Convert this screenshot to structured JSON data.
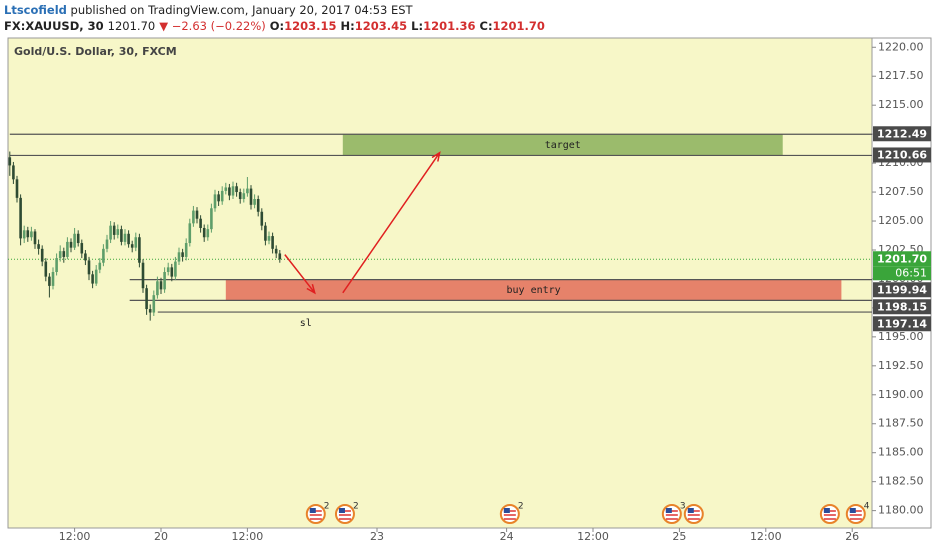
{
  "header": {
    "author": "Ltscofield",
    "published": "published on TradingView.com, January 20, 2017 04:53 EST",
    "symbol": "FX:XAUUSD, 30",
    "last": "1201.70",
    "change": "▼ −2.63 (−0.22%)",
    "ohlc": [
      {
        "key": "O:",
        "value": "1203.15"
      },
      {
        "key": "H:",
        "value": "1203.45"
      },
      {
        "key": "L:",
        "value": "1201.36"
      },
      {
        "key": "C:",
        "value": "1201.70"
      }
    ]
  },
  "chart_data": {
    "type": "candlestick",
    "title": "Gold/U.S. Dollar, 30, FXCM",
    "up_color": "#5e9e6a",
    "down_color": "#2e4b33",
    "background": "#f7f7c8",
    "grid": false,
    "xlim": [
      -0.5,
      239.5
    ],
    "ylim": [
      1178.5,
      1220.8
    ],
    "xticks": [
      {
        "value": 18,
        "label": "12:00"
      },
      {
        "value": 42,
        "label": "20"
      },
      {
        "value": 66,
        "label": "12:00"
      },
      {
        "value": 102,
        "label": "23"
      },
      {
        "value": 138,
        "label": "24"
      },
      {
        "value": 162,
        "label": "12:00"
      },
      {
        "value": 186,
        "label": "25"
      },
      {
        "value": 210,
        "label": "12:00"
      },
      {
        "value": 234,
        "label": "26"
      }
    ],
    "yticks": [
      {
        "value": 1180,
        "label": "1180.00"
      },
      {
        "value": 1182.5,
        "label": "1182.50"
      },
      {
        "value": 1185,
        "label": "1185.00"
      },
      {
        "value": 1187.5,
        "label": "1187.50"
      },
      {
        "value": 1190,
        "label": "1190.00"
      },
      {
        "value": 1192.5,
        "label": "1192.50"
      },
      {
        "value": 1195,
        "label": "1195.00"
      },
      {
        "value": 1197.5,
        "label": "1197.50"
      },
      {
        "value": 1200,
        "label": "1200.00"
      },
      {
        "value": 1202.5,
        "label": "1202.50"
      },
      {
        "value": 1205,
        "label": "1205.00"
      },
      {
        "value": 1207.5,
        "label": "1207.50"
      },
      {
        "value": 1210,
        "label": "1210.00"
      },
      {
        "value": 1212.5,
        "label": "1212.50"
      },
      {
        "value": 1215,
        "label": "1215.00"
      },
      {
        "value": 1217.5,
        "label": "1217.50"
      },
      {
        "value": 1220,
        "label": "1220.00"
      }
    ],
    "candles": [
      [
        1210.5,
        1211.0,
        1208.9,
        1209.8
      ],
      [
        1209.8,
        1210.1,
        1208.2,
        1208.6
      ],
      [
        1208.6,
        1208.9,
        1206.6,
        1207.0
      ],
      [
        1207.0,
        1207.3,
        1202.9,
        1203.5
      ],
      [
        1203.5,
        1204.6,
        1203.1,
        1204.2
      ],
      [
        1204.2,
        1204.5,
        1203.2,
        1203.6
      ],
      [
        1203.6,
        1204.5,
        1203.3,
        1204.1
      ],
      [
        1204.1,
        1204.3,
        1202.6,
        1203.0
      ],
      [
        1203.0,
        1203.4,
        1202.1,
        1202.6
      ],
      [
        1202.6,
        1202.9,
        1201.1,
        1201.5
      ],
      [
        1201.5,
        1201.8,
        1199.8,
        1200.2
      ],
      [
        1200.2,
        1200.5,
        1198.4,
        1199.4
      ],
      [
        1199.4,
        1201.0,
        1199.1,
        1200.6
      ],
      [
        1200.6,
        1202.2,
        1200.3,
        1201.8
      ],
      [
        1201.8,
        1202.9,
        1201.5,
        1202.4
      ],
      [
        1202.4,
        1202.7,
        1201.4,
        1201.9
      ],
      [
        1201.9,
        1203.6,
        1201.7,
        1203.2
      ],
      [
        1203.2,
        1203.5,
        1202.3,
        1202.7
      ],
      [
        1202.7,
        1204.4,
        1202.5,
        1203.9
      ],
      [
        1203.9,
        1204.2,
        1202.8,
        1203.1
      ],
      [
        1203.1,
        1203.4,
        1201.8,
        1202.2
      ],
      [
        1202.2,
        1202.5,
        1201.2,
        1201.6
      ],
      [
        1201.6,
        1201.9,
        1199.9,
        1200.4
      ],
      [
        1200.4,
        1200.7,
        1199.2,
        1199.6
      ],
      [
        1199.6,
        1201.2,
        1199.4,
        1200.8
      ],
      [
        1200.8,
        1201.8,
        1200.5,
        1201.4
      ],
      [
        1201.4,
        1203.0,
        1201.1,
        1202.6
      ],
      [
        1202.6,
        1203.8,
        1202.3,
        1203.4
      ],
      [
        1203.4,
        1205.0,
        1203.1,
        1204.6
      ],
      [
        1204.6,
        1204.9,
        1203.4,
        1203.8
      ],
      [
        1203.8,
        1204.7,
        1203.5,
        1204.3
      ],
      [
        1204.3,
        1204.6,
        1202.9,
        1203.2
      ],
      [
        1203.2,
        1204.3,
        1202.9,
        1203.9
      ],
      [
        1203.9,
        1204.2,
        1202.7,
        1203.0
      ],
      [
        1203.0,
        1203.3,
        1202.3,
        1202.7
      ],
      [
        1202.7,
        1204.0,
        1202.4,
        1203.6
      ],
      [
        1203.6,
        1203.9,
        1201.0,
        1201.4
      ],
      [
        1201.4,
        1201.7,
        1198.8,
        1199.2
      ],
      [
        1199.2,
        1199.5,
        1196.9,
        1197.4
      ],
      [
        1197.4,
        1197.8,
        1196.4,
        1197.1
      ],
      [
        1197.1,
        1199.0,
        1196.8,
        1198.6
      ],
      [
        1198.6,
        1200.2,
        1198.3,
        1199.8
      ],
      [
        1199.8,
        1200.1,
        1198.7,
        1199.1
      ],
      [
        1199.1,
        1201.0,
        1198.8,
        1200.6
      ],
      [
        1200.6,
        1201.4,
        1200.3,
        1201.0
      ],
      [
        1201.0,
        1201.3,
        1199.8,
        1200.2
      ],
      [
        1200.2,
        1201.9,
        1199.9,
        1201.5
      ],
      [
        1201.5,
        1202.7,
        1201.2,
        1202.3
      ],
      [
        1202.3,
        1202.6,
        1201.5,
        1201.9
      ],
      [
        1201.9,
        1203.5,
        1201.6,
        1203.1
      ],
      [
        1203.1,
        1205.2,
        1202.8,
        1204.8
      ],
      [
        1204.8,
        1206.3,
        1204.5,
        1205.9
      ],
      [
        1205.9,
        1206.2,
        1204.8,
        1205.2
      ],
      [
        1205.2,
        1205.5,
        1204.0,
        1204.4
      ],
      [
        1204.4,
        1204.7,
        1203.2,
        1203.6
      ],
      [
        1203.6,
        1204.7,
        1203.3,
        1204.3
      ],
      [
        1204.3,
        1206.5,
        1204.0,
        1206.1
      ],
      [
        1206.1,
        1207.7,
        1205.8,
        1207.3
      ],
      [
        1207.3,
        1207.6,
        1206.3,
        1206.7
      ],
      [
        1206.7,
        1208.0,
        1206.4,
        1207.6
      ],
      [
        1207.6,
        1208.3,
        1207.3,
        1207.9
      ],
      [
        1207.9,
        1208.2,
        1206.8,
        1207.2
      ],
      [
        1207.2,
        1208.4,
        1206.9,
        1208.0
      ],
      [
        1208.0,
        1208.3,
        1207.1,
        1207.5
      ],
      [
        1207.5,
        1207.8,
        1206.5,
        1206.9
      ],
      [
        1206.9,
        1207.8,
        1206.6,
        1207.4
      ],
      [
        1207.4,
        1208.8,
        1207.1,
        1207.8
      ],
      [
        1207.8,
        1208.1,
        1206.0,
        1206.4
      ],
      [
        1206.4,
        1207.3,
        1206.1,
        1206.9
      ],
      [
        1206.9,
        1207.2,
        1205.4,
        1205.8
      ],
      [
        1205.8,
        1206.1,
        1204.2,
        1204.6
      ],
      [
        1204.6,
        1204.9,
        1202.9,
        1203.3
      ],
      [
        1203.3,
        1204.1,
        1203.0,
        1203.7
      ],
      [
        1203.7,
        1204.0,
        1202.2,
        1202.6
      ],
      [
        1202.6,
        1202.9,
        1201.8,
        1202.2
      ],
      [
        1202.2,
        1202.5,
        1201.4,
        1201.7
      ]
    ],
    "levels": [
      {
        "value": 1212.49,
        "x0": 0
      },
      {
        "value": 1210.66,
        "x0": 0
      },
      {
        "value": 1199.94,
        "x0": 33.3
      },
      {
        "value": 1198.15,
        "x0": 33.3
      },
      {
        "value": 1197.14,
        "x0": 41.1
      }
    ],
    "last_price": {
      "value": 1201.7,
      "label": "1201.70",
      "color": "#3aa53a",
      "countdown": "06:51"
    },
    "zones": [
      {
        "label": "target",
        "x": [
          92.5,
          214.7
        ],
        "y": [
          1210.66,
          1212.49
        ],
        "color": "#9bbb6c"
      },
      {
        "label": "buy entry",
        "x": [
          60,
          231
        ],
        "y": [
          1198.15,
          1199.94
        ],
        "color": "#e6826a"
      }
    ],
    "annotations": [
      {
        "text": "sl",
        "x": 82.2,
        "y": 1196.2
      }
    ],
    "arrows": [
      {
        "x": [
          76.4,
          84.7
        ],
        "y": [
          1202.1,
          1198.8
        ]
      },
      {
        "x": [
          92.5,
          119.4
        ],
        "y": [
          1198.8,
          1210.9
        ]
      }
    ],
    "events": [
      {
        "x": 85,
        "count": 2
      },
      {
        "x": 93.1,
        "count": 2
      },
      {
        "x": 138.9,
        "count": 2
      },
      {
        "x": 183.9,
        "count": 3
      },
      {
        "x": 190
      },
      {
        "x": 227.8
      },
      {
        "x": 235,
        "count": 4
      }
    ]
  }
}
